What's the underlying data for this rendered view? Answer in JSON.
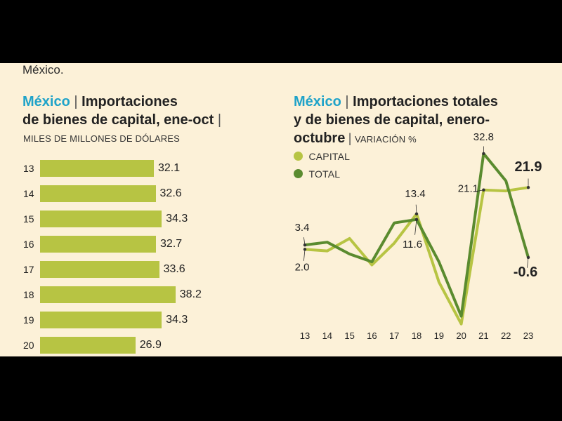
{
  "intro_text": "México.",
  "left_chart": {
    "title_accent": "México",
    "title_rest_1": "Importaciones",
    "title_line2": "de bienes de capital, ene-oct",
    "subtitle": "MILES DE MILLONES DE DÓLARES"
  },
  "right_chart": {
    "title_accent": "México",
    "title_rest_1": "Importaciones totales",
    "title_line2": "y de bienes de capital, enero-",
    "title_line3_bold": "octubre",
    "title_line3_sub": "VARIACIÓN %",
    "legend": [
      {
        "label": "CAPITAL",
        "color": "#b7c443"
      },
      {
        "label": "TOTAL",
        "color": "#5a8b2f"
      }
    ]
  },
  "colors": {
    "bar": "#b7c443",
    "capital": "#b7c443",
    "total": "#5a8b2f",
    "accent": "#1fa3c9",
    "background": "#fcf1d8"
  },
  "chart_data": [
    {
      "type": "bar",
      "orientation": "horizontal",
      "title": "México | Importaciones de bienes de capital, ene-oct",
      "subtitle": "MILES DE MILLONES DE DÓLARES",
      "categories": [
        "13",
        "14",
        "15",
        "16",
        "17",
        "18",
        "19",
        "20"
      ],
      "values": [
        32.1,
        32.6,
        34.3,
        32.7,
        33.6,
        38.2,
        34.3,
        26.9
      ],
      "value_labels": [
        "32.1",
        "32.6",
        "34.3",
        "32.7",
        "33.6",
        "38.2",
        "34.3",
        "26.9"
      ]
    },
    {
      "type": "line",
      "title": "México | Importaciones totales y de bienes de capital, enero-octubre",
      "ylabel": "VARIACIÓN %",
      "x": [
        "13",
        "14",
        "15",
        "16",
        "17",
        "18",
        "19",
        "20",
        "21",
        "22",
        "23"
      ],
      "ylim": [
        -25,
        40
      ],
      "series": [
        {
          "name": "CAPITAL",
          "values": [
            2.0,
            1.5,
            5.5,
            -3.0,
            4.0,
            13.4,
            -8.5,
            -22.0,
            21.1,
            20.8,
            21.9
          ]
        },
        {
          "name": "TOTAL",
          "values": [
            3.4,
            4.3,
            0.5,
            -2.0,
            10.5,
            11.6,
            -2.0,
            -19.5,
            32.8,
            24.0,
            -0.6
          ]
        }
      ],
      "annotations": [
        {
          "text": "3.4",
          "series": "TOTAL",
          "x": "13"
        },
        {
          "text": "2.0",
          "series": "CAPITAL",
          "x": "13"
        },
        {
          "text": "13.4",
          "series": "CAPITAL",
          "x": "18"
        },
        {
          "text": "11.6",
          "series": "TOTAL",
          "x": "18"
        },
        {
          "text": "21.1",
          "series": "CAPITAL",
          "x": "21"
        },
        {
          "text": "32.8",
          "series": "TOTAL",
          "x": "21"
        },
        {
          "text": "21.9",
          "series": "CAPITAL",
          "x": "23"
        },
        {
          "text": "-0.6",
          "series": "TOTAL",
          "x": "23"
        }
      ]
    }
  ]
}
